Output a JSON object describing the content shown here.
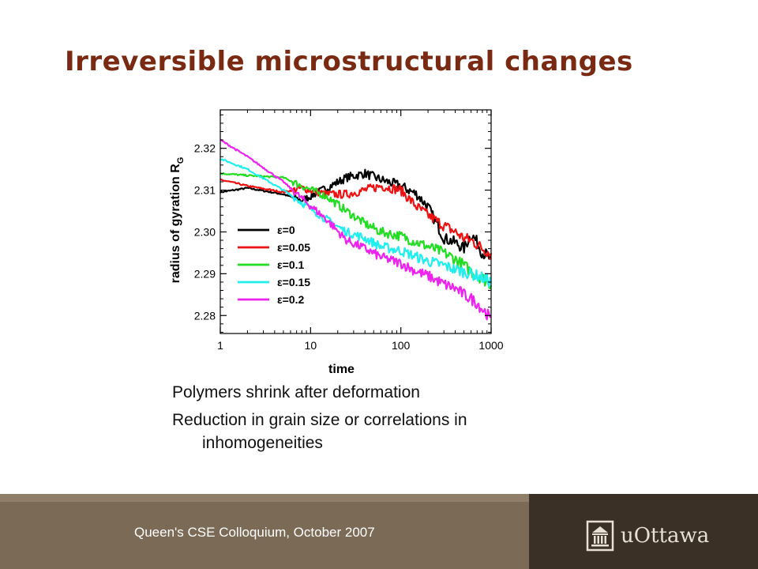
{
  "slide": {
    "title": "Irreversible microstructural changes",
    "bullets": [
      {
        "line1": "Polymers shrink after deformation",
        "line2": ""
      },
      {
        "line1": "Reduction in grain size or correlations in",
        "line2": "inhomogeneities"
      }
    ],
    "footer": "Queen's CSE Colloquium, October 2007",
    "logo_text": "uOttawa"
  },
  "chart_data": {
    "type": "line",
    "xlabel": "time",
    "ylabel": "radius of gyration R",
    "ylabel_sub": "G",
    "xscale": "log",
    "xlim": [
      1,
      1000
    ],
    "ylim": [
      2.2757,
      2.3292
    ],
    "xticks": [
      1,
      10,
      100,
      1000
    ],
    "xtick_labels": [
      "1",
      "10",
      "100",
      "1000"
    ],
    "yticks": [
      2.28,
      2.29,
      2.3,
      2.31,
      2.32
    ],
    "ytick_labels": [
      "2.28",
      "2.29",
      "2.30",
      "2.31",
      "2.32"
    ],
    "legend_position": "lower-left",
    "series": [
      {
        "name": "ε=0",
        "color": "#000000",
        "x": [
          1,
          2,
          5,
          8,
          15,
          25,
          40,
          60,
          100,
          150,
          200,
          300,
          400,
          500,
          600,
          700,
          800,
          900,
          1000
        ],
        "y": [
          2.3095,
          2.3105,
          2.309,
          2.3075,
          2.3105,
          2.313,
          2.314,
          2.3125,
          2.311,
          2.309,
          2.306,
          2.2985,
          2.2975,
          2.296,
          2.2995,
          2.2975,
          2.295,
          2.2945,
          2.293
        ]
      },
      {
        "name": "ε=0.05",
        "color": "#ee1111",
        "x": [
          1,
          2,
          5,
          8,
          15,
          25,
          40,
          60,
          100,
          150,
          200,
          300,
          400,
          500,
          600,
          700,
          800,
          900,
          1000
        ],
        "y": [
          2.3125,
          2.311,
          2.3095,
          2.3105,
          2.309,
          2.309,
          2.31,
          2.311,
          2.31,
          2.306,
          2.304,
          2.3015,
          2.3,
          2.2985,
          2.298,
          2.297,
          2.296,
          2.2955,
          2.2945
        ]
      },
      {
        "name": "ε=0.1",
        "color": "#22dd22",
        "x": [
          1,
          2,
          5,
          8,
          15,
          25,
          40,
          60,
          100,
          150,
          200,
          300,
          400,
          500,
          600,
          700,
          800,
          900,
          1000
        ],
        "y": [
          2.314,
          2.3135,
          2.313,
          2.311,
          2.3085,
          2.305,
          2.302,
          2.3,
          2.299,
          2.2975,
          2.2965,
          2.295,
          2.2935,
          2.292,
          2.2905,
          2.2895,
          2.289,
          2.288,
          2.2875
        ]
      },
      {
        "name": "ε=0.15",
        "color": "#22eeee",
        "x": [
          1,
          2,
          5,
          8,
          15,
          25,
          40,
          60,
          100,
          150,
          200,
          300,
          400,
          500,
          600,
          700,
          800,
          900,
          1000
        ],
        "y": [
          2.3175,
          2.315,
          2.31,
          2.307,
          2.303,
          2.3,
          2.2985,
          2.2965,
          2.2955,
          2.294,
          2.293,
          2.292,
          2.291,
          2.2905,
          2.29,
          2.2895,
          2.289,
          2.2885,
          2.288
        ]
      },
      {
        "name": "ε=0.2",
        "color": "#ee22ee",
        "x": [
          1,
          2,
          5,
          8,
          15,
          25,
          40,
          60,
          100,
          150,
          200,
          300,
          400,
          500,
          600,
          700,
          800,
          900,
          1000
        ],
        "y": [
          2.322,
          2.318,
          2.312,
          2.308,
          2.303,
          2.298,
          2.296,
          2.294,
          2.2925,
          2.2905,
          2.2895,
          2.2875,
          2.2865,
          2.285,
          2.284,
          2.283,
          2.2815,
          2.2805,
          2.2785
        ]
      }
    ]
  }
}
